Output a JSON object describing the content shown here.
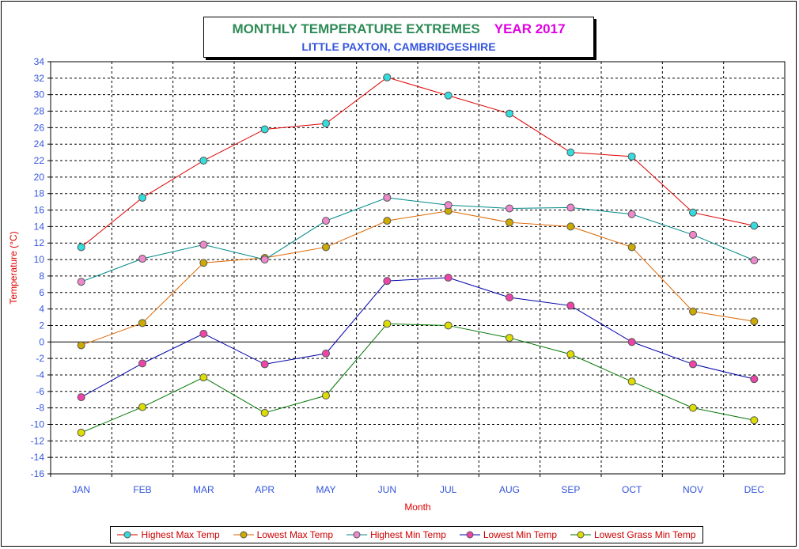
{
  "title": {
    "main": "MONTHLY TEMPERATURE EXTREMES",
    "year": "YEAR  2017",
    "subtitle": "LITTLE PAXTON, CAMBRIDGESHIRE"
  },
  "colors": {
    "title_main": "#2e8b57",
    "title_year": "#e000e0",
    "subtitle": "#3355dd",
    "axis_text": "#3355dd",
    "axis_label": "#e00000",
    "legend_text": "#cc0000"
  },
  "chart_data": {
    "type": "line",
    "xlabel": "Month",
    "ylabel": "Temperature (°C)",
    "ylim": [
      -16,
      34
    ],
    "ytick_step": 2,
    "grid": true,
    "legend_position": "bottom",
    "categories": [
      "JAN",
      "FEB",
      "MAR",
      "APR",
      "MAY",
      "JUN",
      "JUL",
      "AUG",
      "SEP",
      "OCT",
      "NOV",
      "DEC"
    ],
    "series": [
      {
        "name": "Highest Max Temp",
        "line_color": "#dd0000",
        "marker_color": "#33dddd",
        "values": [
          11.5,
          17.5,
          22.0,
          25.8,
          26.5,
          32.1,
          29.9,
          27.7,
          23.0,
          22.5,
          15.7,
          14.1
        ]
      },
      {
        "name": "Lowest Max Temp",
        "line_color": "#dd6600",
        "marker_color": "#ccaa00",
        "values": [
          -0.4,
          2.3,
          9.6,
          10.2,
          11.5,
          14.7,
          15.9,
          14.5,
          14.0,
          11.5,
          3.7,
          2.5
        ]
      },
      {
        "name": "Highest Min Temp",
        "line_color": "#008888",
        "marker_color": "#ee88cc",
        "values": [
          7.3,
          10.1,
          11.8,
          10.0,
          14.7,
          17.5,
          16.6,
          16.2,
          16.3,
          15.5,
          13.0,
          9.9
        ]
      },
      {
        "name": "Lowest Min Temp",
        "line_color": "#0000aa",
        "marker_color": "#ee44aa",
        "values": [
          -6.7,
          -2.6,
          1.0,
          -2.7,
          -1.4,
          7.4,
          7.8,
          5.4,
          4.4,
          0.0,
          -2.7,
          -4.5
        ]
      },
      {
        "name": "Lowest Grass Min Temp",
        "line_color": "#007700",
        "marker_color": "#dddd00",
        "values": [
          -11.0,
          -7.9,
          -4.3,
          -8.6,
          -6.5,
          2.2,
          2.0,
          0.5,
          -1.5,
          -4.8,
          -8.0,
          -9.5
        ]
      }
    ]
  }
}
